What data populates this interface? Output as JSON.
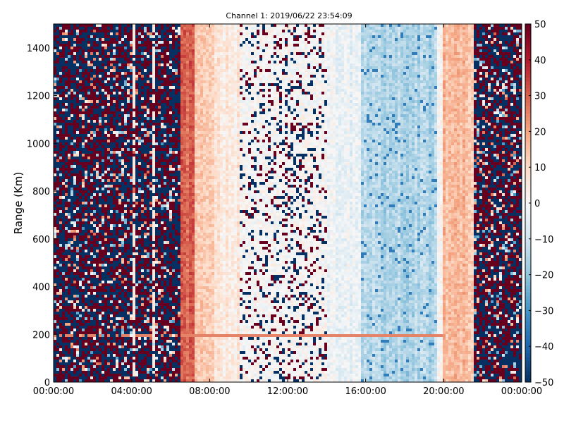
{
  "chart_data": {
    "type": "heatmap",
    "title": "Channel 1: 2019/06/22 23:54:09",
    "xlabel": "",
    "ylabel": "Range (Km)",
    "x_ticks": [
      "00:00:00",
      "04:00:00",
      "08:00:00",
      "12:00:00",
      "16:00:00",
      "20:00:00",
      "00:00:00"
    ],
    "x_tick_hours": [
      0,
      4,
      8,
      12,
      16,
      20,
      24
    ],
    "xlim_hours": [
      0,
      24
    ],
    "y_ticks": [
      0,
      200,
      400,
      600,
      800,
      1000,
      1200,
      1400
    ],
    "ylim": [
      0,
      1500
    ],
    "colorbar": {
      "ticks": [
        50,
        40,
        30,
        20,
        10,
        0,
        -10,
        -20,
        -30,
        -40,
        -50
      ],
      "range": [
        -50,
        50
      ],
      "colormap": "RdBu_r",
      "low_color": "#053061",
      "mid_color": "#f7f7f7",
      "high_color": "#67001f"
    },
    "grid": false,
    "regions": [
      {
        "start_hour": 0.0,
        "end_hour": 6.5,
        "pattern": "noise",
        "notes": "saturated random +/-50"
      },
      {
        "start_hour": 6.5,
        "end_hour": 7.2,
        "pattern": "band",
        "mean": 30
      },
      {
        "start_hour": 7.2,
        "end_hour": 8.3,
        "pattern": "band",
        "mean": 14
      },
      {
        "start_hour": 8.3,
        "end_hour": 9.5,
        "pattern": "band",
        "mean": 5
      },
      {
        "start_hour": 9.5,
        "end_hour": 14.0,
        "pattern": "speckled",
        "mean": 0
      },
      {
        "start_hour": 14.0,
        "end_hour": 15.8,
        "pattern": "band",
        "mean": -3
      },
      {
        "start_hour": 15.8,
        "end_hour": 19.6,
        "pattern": "band",
        "mean": -15
      },
      {
        "start_hour": 19.6,
        "end_hour": 20.0,
        "pattern": "band",
        "mean": 0
      },
      {
        "start_hour": 20.0,
        "end_hour": 21.6,
        "pattern": "band",
        "mean": 15
      },
      {
        "start_hour": 21.6,
        "end_hour": 24.0,
        "pattern": "noise",
        "notes": "saturated random +/-50"
      }
    ],
    "features": [
      {
        "type": "horizontal_line",
        "range_km": 195,
        "start_hour": 0,
        "end_hour": 20,
        "value": 25
      },
      {
        "type": "vertical_line",
        "hour": 5.15,
        "value": 5
      },
      {
        "type": "vertical_line",
        "hour": 4.1,
        "value": 5
      }
    ]
  }
}
